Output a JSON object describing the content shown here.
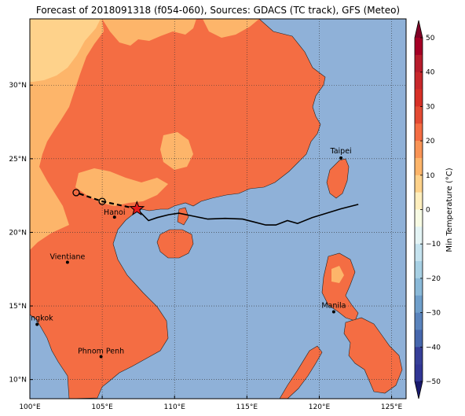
{
  "title": "Forecast of 2018091318 (f054-060), Sources: GDACS (TC track), GFS (Meteo)",
  "map": {
    "lon_range": [
      100,
      126
    ],
    "lat_range": [
      8.7,
      34.5
    ],
    "lon_ticks": [
      {
        "value": 100,
        "label": "100°E"
      },
      {
        "value": 105,
        "label": "105°E"
      },
      {
        "value": 110,
        "label": "110°E"
      },
      {
        "value": 115,
        "label": "115°E"
      },
      {
        "value": 120,
        "label": "120°E"
      },
      {
        "value": 125,
        "label": "125°E"
      }
    ],
    "lat_ticks": [
      {
        "value": 10,
        "label": "10°N"
      },
      {
        "value": 15,
        "label": "15°N"
      },
      {
        "value": 20,
        "label": "20°N"
      },
      {
        "value": 25,
        "label": "25°N"
      },
      {
        "value": 30,
        "label": "30°N"
      }
    ],
    "grid": true,
    "ocean_color": "#8fb1d8",
    "land_color": "#f46d43",
    "cities": [
      {
        "name": "Taipei",
        "lon": 121.5,
        "lat": 25.05
      },
      {
        "name": "Hanoi",
        "lon": 105.85,
        "lat": 21.03
      },
      {
        "name": "Vientiane",
        "lon": 102.6,
        "lat": 17.97
      },
      {
        "name": "Manila",
        "lon": 121.0,
        "lat": 14.6
      },
      {
        "name": "Bangkok",
        "lon": 100.5,
        "lat": 13.75
      },
      {
        "name": "Phnom Penh",
        "lon": 104.92,
        "lat": 11.56
      }
    ],
    "track_observed": [
      [
        122.7,
        21.9
      ],
      [
        121.5,
        21.6
      ],
      [
        120.5,
        21.3
      ],
      [
        119.5,
        21.0
      ],
      [
        118.5,
        20.6
      ],
      [
        117.8,
        20.8
      ],
      [
        117.0,
        20.5
      ],
      [
        116.3,
        20.5
      ],
      [
        115.5,
        20.7
      ],
      [
        114.7,
        20.9
      ],
      [
        113.5,
        20.95
      ],
      [
        112.3,
        20.9
      ],
      [
        111.3,
        21.1
      ],
      [
        110.3,
        21.3
      ],
      [
        109.6,
        21.2
      ],
      [
        108.8,
        21.0
      ],
      [
        108.2,
        20.8
      ],
      [
        107.4,
        21.6
      ]
    ],
    "track_forecast": [
      [
        107.4,
        21.6
      ],
      [
        105.0,
        22.1
      ],
      [
        103.2,
        22.7
      ]
    ],
    "storm_position": {
      "lon": 107.4,
      "lat": 21.6
    },
    "forecast_points": [
      {
        "lon": 105.0,
        "lat": 22.1
      },
      {
        "lon": 103.2,
        "lat": 22.7
      }
    ]
  },
  "colorbar": {
    "label": "Min Temperature (°C)",
    "min": -50,
    "max": 50,
    "ticks": [
      {
        "value": 50,
        "label": "50"
      },
      {
        "value": 40,
        "label": "40"
      },
      {
        "value": 30,
        "label": "30"
      },
      {
        "value": 20,
        "label": "20"
      },
      {
        "value": 10,
        "label": "10"
      },
      {
        "value": 0,
        "label": "0"
      },
      {
        "value": -10,
        "label": "−10"
      },
      {
        "value": -20,
        "label": "−20"
      },
      {
        "value": -30,
        "label": "−30"
      },
      {
        "value": -40,
        "label": "−40"
      },
      {
        "value": -50,
        "label": "−50"
      }
    ],
    "segments": [
      {
        "from": 45,
        "to": 50,
        "color": "#a50026"
      },
      {
        "from": 40,
        "to": 45,
        "color": "#b71c2c"
      },
      {
        "from": 35,
        "to": 40,
        "color": "#c8282c"
      },
      {
        "from": 30,
        "to": 35,
        "color": "#d73027"
      },
      {
        "from": 25,
        "to": 30,
        "color": "#e34a33"
      },
      {
        "from": 20,
        "to": 25,
        "color": "#f46d43"
      },
      {
        "from": 15,
        "to": 20,
        "color": "#f99456"
      },
      {
        "from": 10,
        "to": 15,
        "color": "#fdb56a"
      },
      {
        "from": 5,
        "to": 10,
        "color": "#fed28b"
      },
      {
        "from": 0,
        "to": 5,
        "color": "#ffefbe"
      },
      {
        "from": -5,
        "to": 0,
        "color": "#f7fbe4"
      },
      {
        "from": -10,
        "to": -5,
        "color": "#e4f4f5"
      },
      {
        "from": -15,
        "to": -10,
        "color": "#c5e3ef"
      },
      {
        "from": -20,
        "to": -15,
        "color": "#a7d0e4"
      },
      {
        "from": -25,
        "to": -20,
        "color": "#8ab9d8"
      },
      {
        "from": -30,
        "to": -25,
        "color": "#6f9fcb"
      },
      {
        "from": -35,
        "to": -30,
        "color": "#5a84bd"
      },
      {
        "from": -40,
        "to": -35,
        "color": "#4667ad"
      },
      {
        "from": -45,
        "to": -40,
        "color": "#363f98"
      },
      {
        "from": -50,
        "to": -45,
        "color": "#313695"
      }
    ],
    "extend_top_color": "#800026",
    "extend_bottom_color": "#1a1a6e"
  }
}
